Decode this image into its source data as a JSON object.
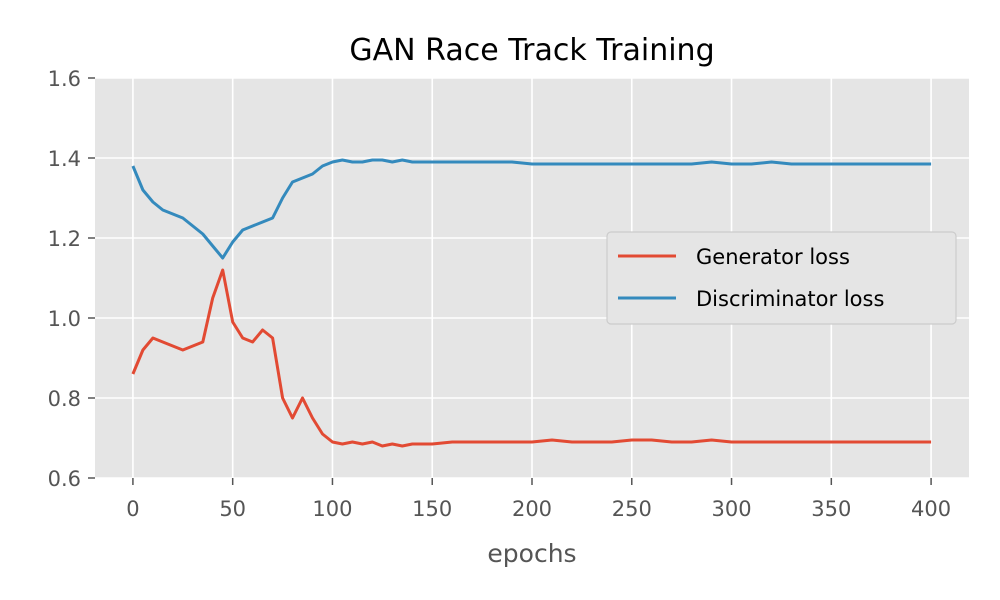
{
  "chart_data": {
    "type": "line",
    "title": "GAN Race Track Training",
    "xlabel": "epochs",
    "ylabel": "",
    "xlim": [
      -19,
      419
    ],
    "ylim": [
      0.6,
      1.6
    ],
    "xticks": [
      0,
      50,
      100,
      150,
      200,
      250,
      300,
      350,
      400
    ],
    "yticks": [
      0.6,
      0.8,
      1.0,
      1.2,
      1.4,
      1.6
    ],
    "xtick_labels": [
      "0",
      "50",
      "100",
      "150",
      "200",
      "250",
      "300",
      "350",
      "400"
    ],
    "ytick_labels": [
      "0.6",
      "0.8",
      "1.0",
      "1.2",
      "1.4",
      "1.6"
    ],
    "grid": true,
    "legend_position": "center-right",
    "x": [
      0,
      5,
      10,
      15,
      20,
      25,
      30,
      35,
      40,
      45,
      50,
      55,
      60,
      65,
      70,
      75,
      80,
      85,
      90,
      95,
      100,
      105,
      110,
      115,
      120,
      125,
      130,
      135,
      140,
      150,
      160,
      170,
      180,
      190,
      200,
      210,
      220,
      230,
      240,
      250,
      260,
      270,
      280,
      290,
      300,
      310,
      320,
      330,
      340,
      350,
      360,
      370,
      380,
      390,
      400
    ],
    "series": [
      {
        "name": "Generator loss",
        "color": "#e24a33",
        "values": [
          0.86,
          0.92,
          0.95,
          0.94,
          0.93,
          0.92,
          0.93,
          0.94,
          1.05,
          1.12,
          0.99,
          0.95,
          0.94,
          0.97,
          0.95,
          0.8,
          0.75,
          0.8,
          0.75,
          0.71,
          0.69,
          0.685,
          0.69,
          0.685,
          0.69,
          0.68,
          0.685,
          0.68,
          0.685,
          0.685,
          0.69,
          0.69,
          0.69,
          0.69,
          0.69,
          0.695,
          0.69,
          0.69,
          0.69,
          0.695,
          0.695,
          0.69,
          0.69,
          0.695,
          0.69,
          0.69,
          0.69,
          0.69,
          0.69,
          0.69,
          0.69,
          0.69,
          0.69,
          0.69,
          0.69
        ]
      },
      {
        "name": "Discriminator loss",
        "color": "#348abd",
        "values": [
          1.38,
          1.32,
          1.29,
          1.27,
          1.26,
          1.25,
          1.23,
          1.21,
          1.18,
          1.15,
          1.19,
          1.22,
          1.23,
          1.24,
          1.25,
          1.3,
          1.34,
          1.35,
          1.36,
          1.38,
          1.39,
          1.395,
          1.39,
          1.39,
          1.395,
          1.395,
          1.39,
          1.395,
          1.39,
          1.39,
          1.39,
          1.39,
          1.39,
          1.39,
          1.385,
          1.385,
          1.385,
          1.385,
          1.385,
          1.385,
          1.385,
          1.385,
          1.385,
          1.39,
          1.385,
          1.385,
          1.39,
          1.385,
          1.385,
          1.385,
          1.385,
          1.385,
          1.385,
          1.385,
          1.385
        ]
      }
    ],
    "style": {
      "plot_bg": "#e5e5e5",
      "grid_color": "#ffffff",
      "tick_color": "#555555"
    }
  }
}
